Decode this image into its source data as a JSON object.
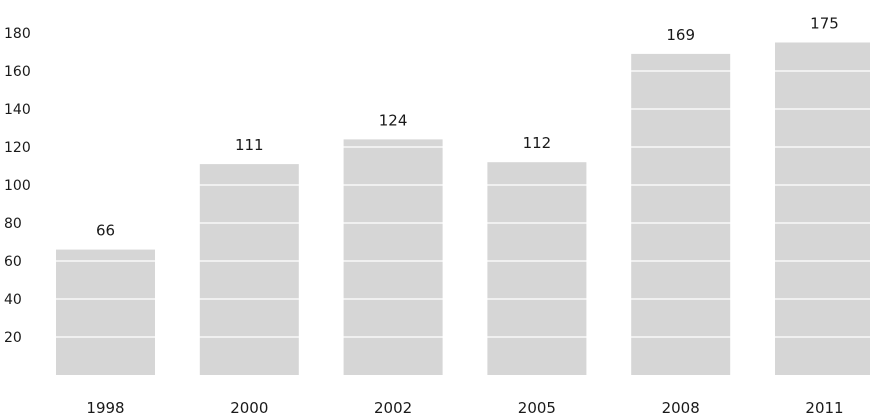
{
  "chart_data": {
    "type": "bar",
    "categories": [
      "1998",
      "2000",
      "2002",
      "2005",
      "2008",
      "2011"
    ],
    "values": [
      66,
      111,
      124,
      112,
      169,
      175
    ],
    "y_ticks": [
      20,
      40,
      60,
      80,
      100,
      120,
      140,
      160,
      180
    ],
    "ylim": [
      0,
      180
    ],
    "grid": true,
    "legend": "none",
    "data_labels": [
      "66",
      "111",
      "124",
      "112",
      "169",
      "175"
    ],
    "colors": {
      "bar": "#d6d6d6",
      "grid": "#ffffff",
      "text": "#1a1a1a"
    }
  }
}
